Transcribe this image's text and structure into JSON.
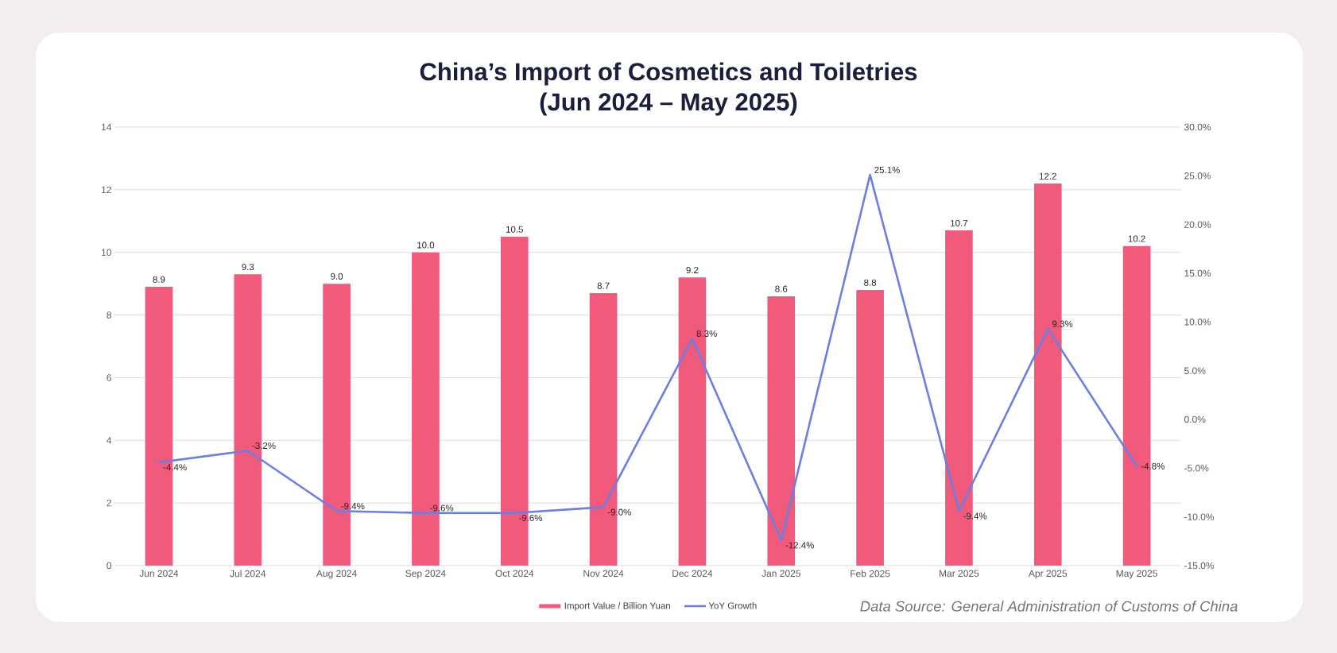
{
  "chart_data": {
    "type": "bar",
    "title": "China’s Import of Cosmetics and Toiletries",
    "subtitle": "(Jun 2024 – May 2025)",
    "categories": [
      "Jun 2024",
      "Jul 2024",
      "Aug 2024",
      "Sep 2024",
      "Oct 2024",
      "Nov 2024",
      "Dec 2024",
      "Jan 2025",
      "Feb 2025",
      "Mar 2025",
      "Apr 2025",
      "May 2025"
    ],
    "series": [
      {
        "name": "Import Value / Billion Yuan",
        "color": "#f25a7c",
        "values": [
          8.9,
          9.3,
          9.0,
          10.0,
          10.5,
          8.7,
          9.2,
          8.6,
          8.8,
          10.7,
          12.2,
          10.2
        ],
        "value_labels": [
          "8.9",
          "9.3",
          "9.0",
          "10.0",
          "10.5",
          "8.7",
          "9.2",
          "8.6",
          "8.8",
          "10.7",
          "12.2",
          "10.2"
        ]
      },
      {
        "name": "YoY Growth",
        "type": "line",
        "axis": "y2",
        "color": "#6b7fe3",
        "values": [
          -4.4,
          -3.2,
          -9.4,
          -9.6,
          -9.6,
          -9.0,
          8.3,
          -12.4,
          25.1,
          -9.4,
          9.3,
          -4.8
        ],
        "value_labels": [
          "-4.4%",
          "-3.2%",
          "-9.4%",
          "-9.6%",
          "-9.6%",
          "-9.0%",
          "8.3%",
          "-12.4%",
          "25.1%",
          "-9.4%",
          "9.3%",
          "-4.8%"
        ]
      }
    ],
    "ylim": [
      0,
      14
    ],
    "yticks": [
      0,
      2,
      4,
      6,
      8,
      10,
      12,
      14
    ],
    "y2lim": [
      -15,
      30
    ],
    "y2ticks": [
      {
        "value": -15,
        "label": "-15.0%"
      },
      {
        "value": -10,
        "label": "-10.0%"
      },
      {
        "value": -5,
        "label": "-5.0%"
      },
      {
        "value": 0,
        "label": "0.0%"
      },
      {
        "value": 5,
        "label": "5.0%"
      },
      {
        "value": 10,
        "label": "10.0%"
      },
      {
        "value": 15,
        "label": "15.0%"
      },
      {
        "value": 20,
        "label": "20.0%"
      },
      {
        "value": 25,
        "label": "25.0%"
      },
      {
        "value": 30,
        "label": "30.0%"
      }
    ],
    "grid": "y",
    "legend": "bottom",
    "annotations": [
      "Data Source: General Administration of Customs of China"
    ]
  }
}
